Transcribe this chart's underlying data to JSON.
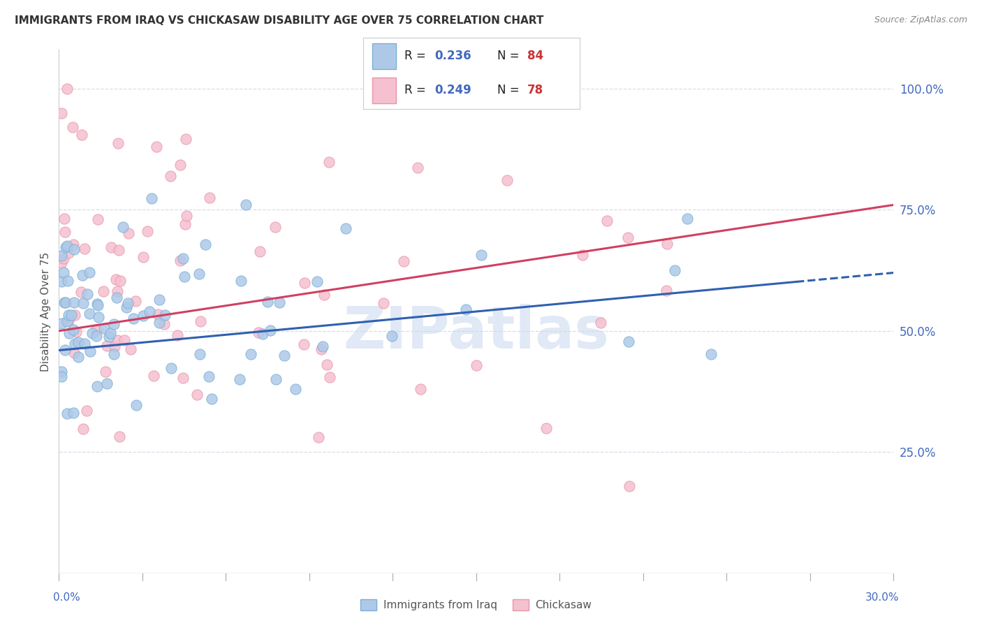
{
  "title": "IMMIGRANTS FROM IRAQ VS CHICKASAW DISABILITY AGE OVER 75 CORRELATION CHART",
  "source": "Source: ZipAtlas.com",
  "ylabel": "Disability Age Over 75",
  "xlim": [
    0.0,
    30.0
  ],
  "ylim": [
    0.0,
    108.0
  ],
  "ytick_vals": [
    0,
    25,
    50,
    75,
    100
  ],
  "ytick_labels": [
    "",
    "25.0%",
    "50.0%",
    "75.0%",
    "100.0%"
  ],
  "blue_R": "0.236",
  "blue_N": "84",
  "pink_R": "0.249",
  "pink_N": "78",
  "blue_color": "#aec9e8",
  "blue_edge": "#7aafd4",
  "pink_color": "#f5c0d0",
  "pink_edge": "#e896a8",
  "blue_line_color": "#3060b0",
  "pink_line_color": "#d04060",
  "legend_label_blue": "Immigrants from Iraq",
  "legend_label_pink": "Chickasaw",
  "blue_trend_y0": 46.0,
  "blue_trend_y30": 62.0,
  "blue_dash_start_x": 26.5,
  "pink_trend_y0": 50.0,
  "pink_trend_y30": 76.0,
  "background_color": "#ffffff",
  "grid_color": "#d8d8e8",
  "watermark": "ZIPatlas",
  "watermark_color": "#c8d8ee",
  "title_color": "#333333",
  "source_color": "#888888",
  "axis_label_color": "#4169c0"
}
